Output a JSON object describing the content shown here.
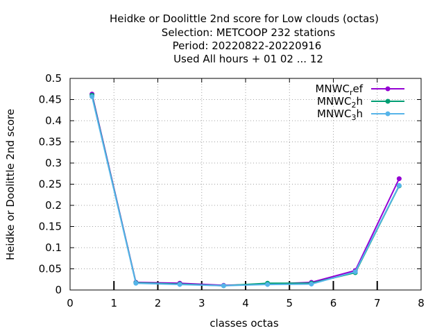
{
  "chart_data": {
    "type": "line",
    "title_lines": [
      "Heidke or Doolittle 2nd score  for Low clouds (octas)",
      "Selection: METCOOP    232 stations",
      "Period: 20220822-20220916",
      "Used  All hours + 01 02 ... 12"
    ],
    "xlabel": "classes octas",
    "ylabel": "Heidke or Doolittle 2nd score",
    "xlim": [
      0,
      8
    ],
    "ylim": [
      0,
      0.5
    ],
    "x_ticks": [
      "0",
      "1",
      "2",
      "3",
      "4",
      "5",
      "6",
      "7",
      "8"
    ],
    "y_ticks": [
      "0",
      "0.05",
      "0.1",
      "0.15",
      "0.2",
      "0.25",
      "0.3",
      "0.35",
      "0.4",
      "0.45",
      "0.5"
    ],
    "grid": true,
    "legend_position": "top-right",
    "x": [
      0.5,
      1.5,
      2.5,
      3.5,
      4.5,
      5.5,
      6.5,
      7.5
    ],
    "series": [
      {
        "name": "MNWC",
        "sub": "r",
        "suffix": "ef",
        "color": "#9400d3",
        "values": [
          0.463,
          0.018,
          0.016,
          0.011,
          0.014,
          0.018,
          0.046,
          0.263
        ]
      },
      {
        "name": "MNWC",
        "sub": "2",
        "suffix": "h",
        "color": "#009e73",
        "values": [
          0.46,
          0.017,
          0.014,
          0.01,
          0.016,
          0.016,
          0.041,
          0.246
        ]
      },
      {
        "name": "MNWC",
        "sub": "3",
        "suffix": "h",
        "color": "#56b4e9",
        "values": [
          0.457,
          0.016,
          0.013,
          0.01,
          0.013,
          0.014,
          0.043,
          0.247
        ]
      }
    ]
  }
}
